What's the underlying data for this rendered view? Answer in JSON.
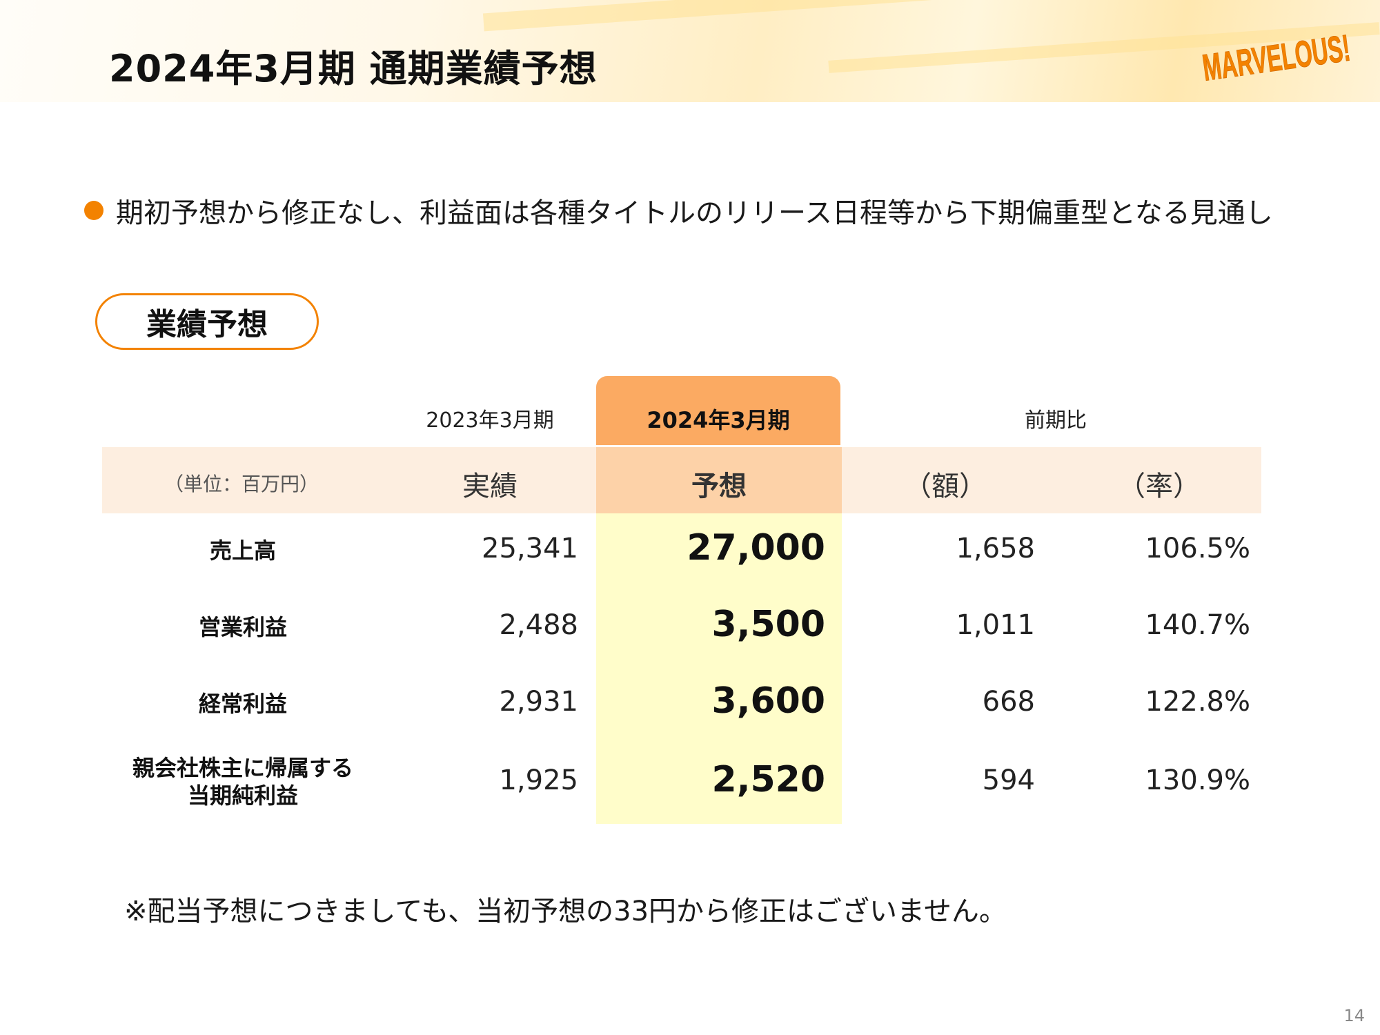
{
  "header": {
    "title": "2024年3月期 通期業績予想",
    "logo_text": "MARVELOUS!",
    "brand_color": "#f38200"
  },
  "bullet": {
    "text": "期初予想から修正なし、利益面は各種タイトルのリリース日程等から下期偏重型となる見通し"
  },
  "section": {
    "label": "業績予想"
  },
  "table": {
    "period_prev": "2023年3月期",
    "period_curr": "2024年3月期",
    "yoy_header": "前期比",
    "unit": "（単位：百万円）",
    "sub_actual": "実績",
    "sub_forecast": "予想",
    "sub_amount": "（額）",
    "sub_rate": "（率）",
    "rows": [
      {
        "label": "売上高",
        "actual": "25,341",
        "forecast": "27,000",
        "amount": "1,658",
        "rate": "106.5%"
      },
      {
        "label": "営業利益",
        "actual": "2,488",
        "forecast": "3,500",
        "amount": "1,011",
        "rate": "140.7%"
      },
      {
        "label": "経常利益",
        "actual": "2,931",
        "forecast": "3,600",
        "amount": "668",
        "rate": "122.8%"
      },
      {
        "label_line1": "親会社株主に帰属する",
        "label_line2": "当期純利益",
        "actual": "1,925",
        "forecast": "2,520",
        "amount": "594",
        "rate": "130.9%"
      }
    ]
  },
  "footnote": "※配当予想につきましても、当初予想の33円から修正はございません。",
  "page_number": "14"
}
